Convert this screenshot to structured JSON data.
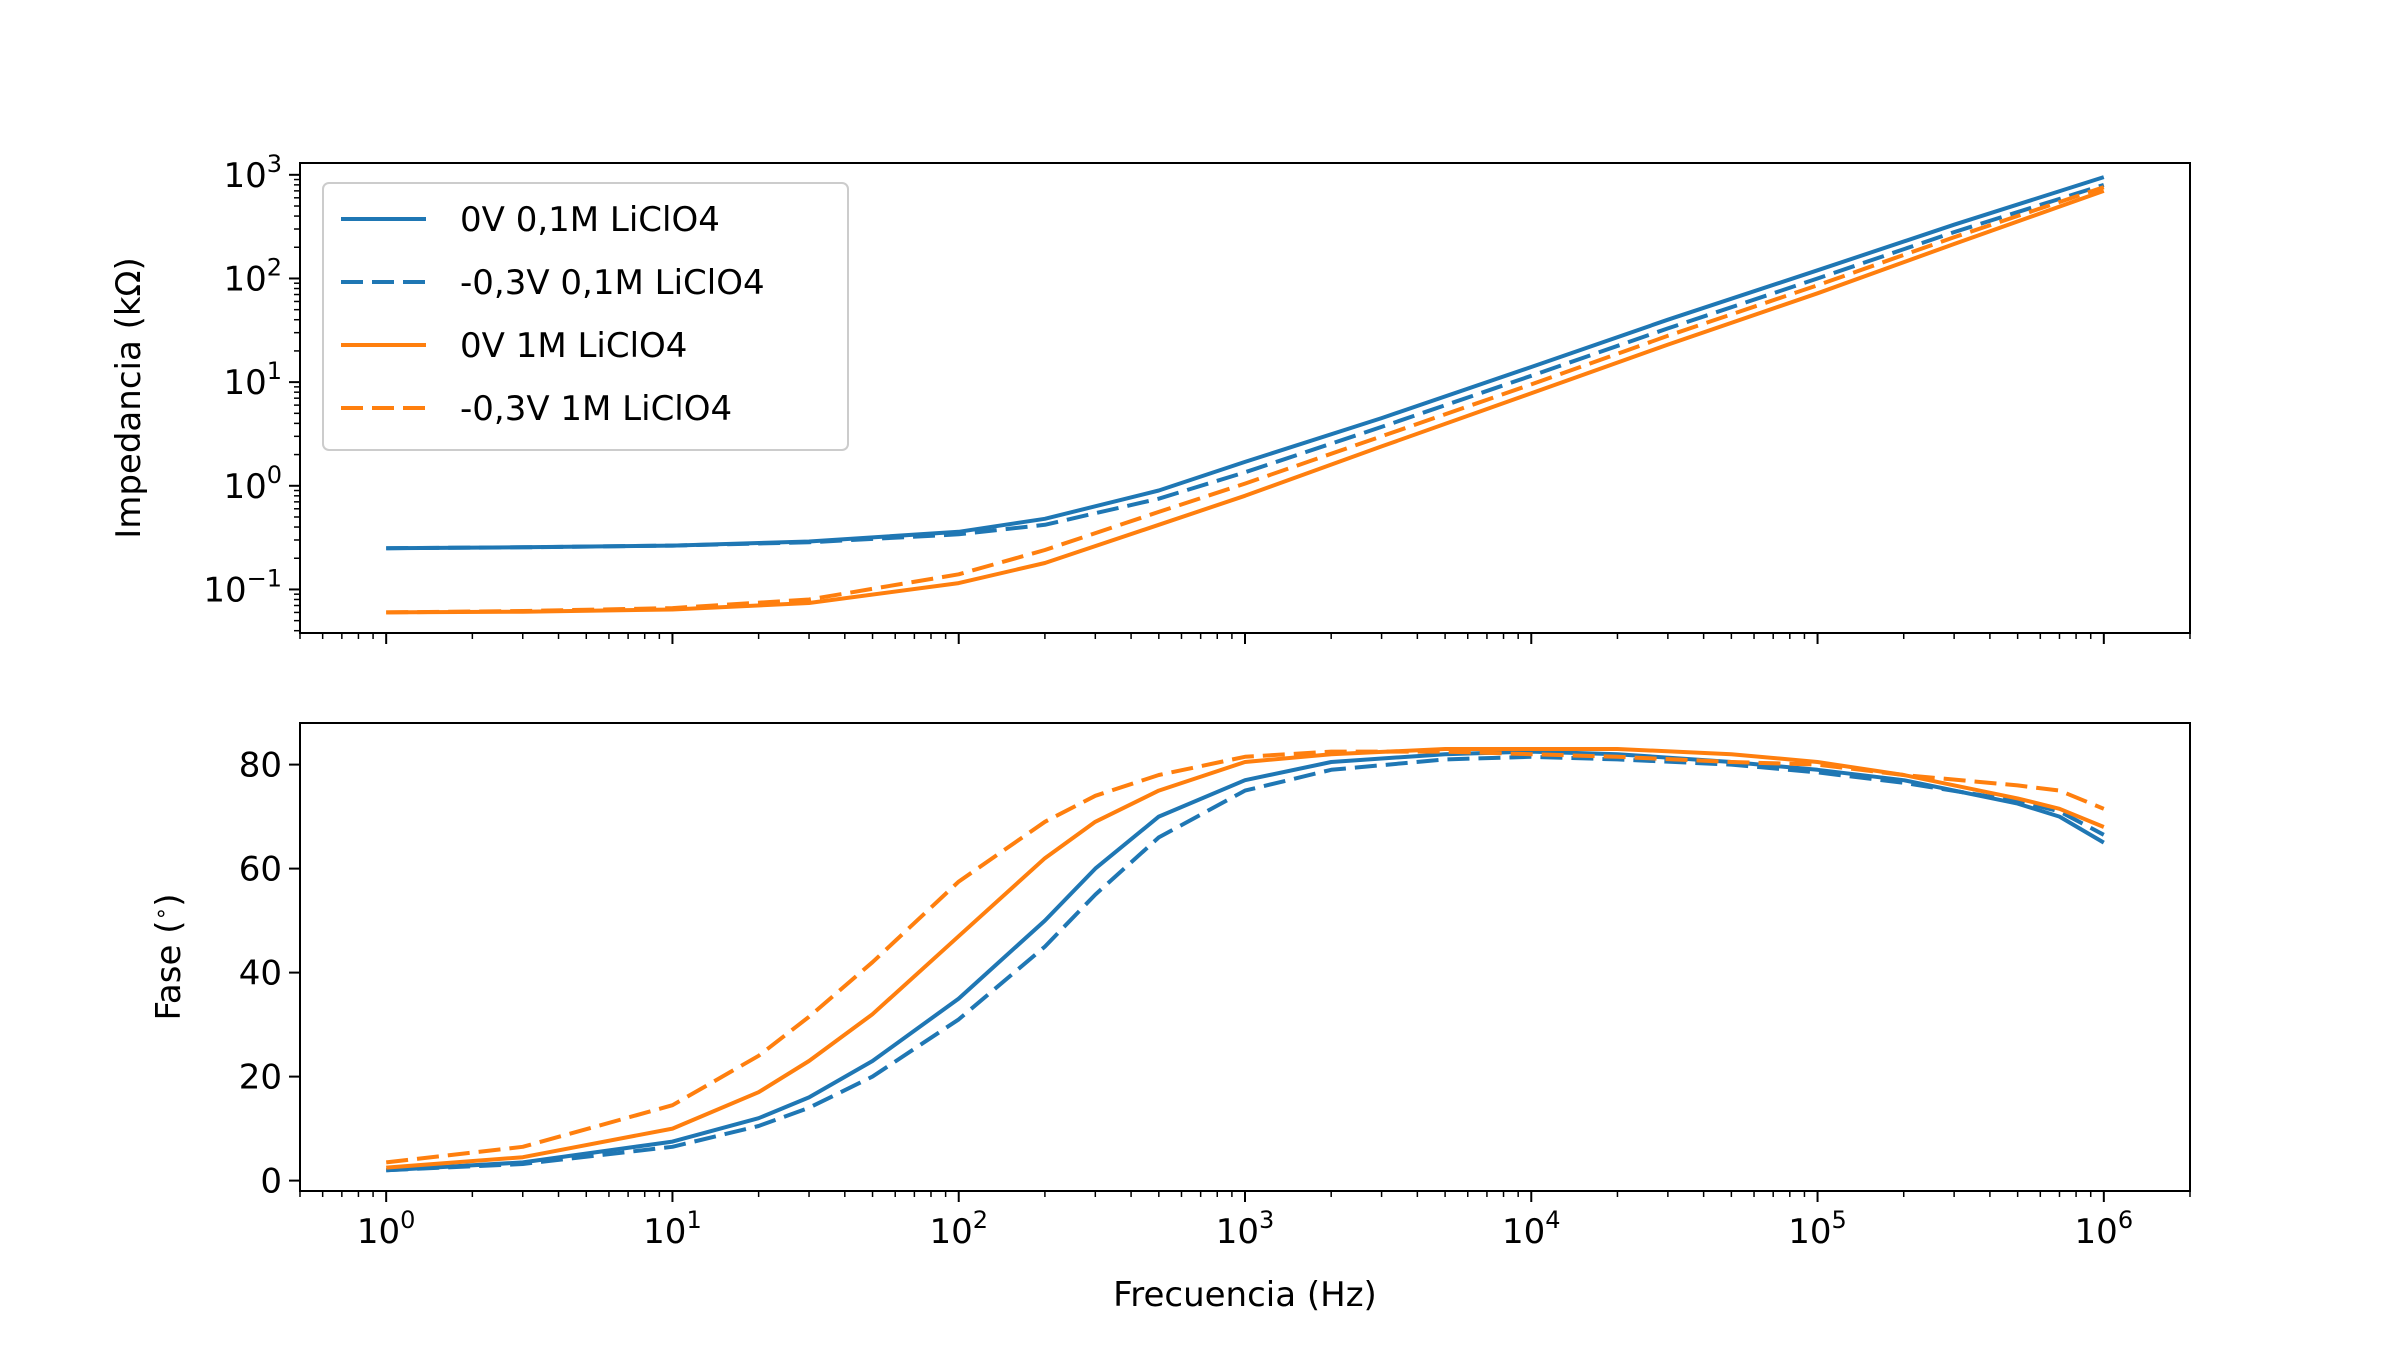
{
  "chart_data": [
    {
      "type": "line",
      "ylabel": "Impedancia (kΩ)",
      "yscale": "log",
      "xscale": "log",
      "xlim": [
        0.5,
        2000000
      ],
      "ylim": [
        0.038,
        1300
      ],
      "x_ticks": [
        "10^0",
        "10^1",
        "10^2",
        "10^3",
        "10^4",
        "10^5",
        "10^6"
      ],
      "y_ticks": [
        "10^-1",
        "10^0",
        "10^1",
        "10^2",
        "10^3"
      ],
      "show_x_tick_labels": false,
      "legend": {
        "placement": "upper left"
      },
      "x": [
        1,
        3,
        10,
        30,
        100,
        200,
        500,
        1000,
        3000,
        10000,
        30000,
        100000,
        300000,
        1000000
      ],
      "series": [
        {
          "name": "0V 0,1M LiClO4",
          "color": "#1f77b4",
          "dash": "solid",
          "values": [
            0.25,
            0.255,
            0.265,
            0.29,
            0.36,
            0.48,
            0.9,
            1.7,
            4.5,
            14,
            40,
            120,
            330,
            950
          ]
        },
        {
          "name": "-0,3V 0,1M LiClO4",
          "color": "#1f77b4",
          "dash": "dashed",
          "values": [
            0.25,
            0.255,
            0.265,
            0.285,
            0.34,
            0.42,
            0.75,
            1.35,
            3.7,
            11.5,
            33,
            100,
            280,
            800
          ]
        },
        {
          "name": "0V 1M LiClO4",
          "color": "#ff7f0e",
          "dash": "solid",
          "values": [
            0.06,
            0.061,
            0.064,
            0.074,
            0.115,
            0.18,
            0.42,
            0.8,
            2.4,
            7.8,
            23,
            72,
            215,
            700
          ]
        },
        {
          "name": "-0,3V 1M LiClO4",
          "color": "#ff7f0e",
          "dash": "dashed",
          "values": [
            0.06,
            0.062,
            0.066,
            0.08,
            0.14,
            0.24,
            0.56,
            1.05,
            3.0,
            9.5,
            28,
            86,
            250,
            760
          ]
        }
      ]
    },
    {
      "type": "line",
      "xlabel": "Frecuencia (Hz)",
      "ylabel": "Fase ($^\\circ$)",
      "ylabel_text": "Fase (",
      "ylabel_degree": "∘",
      "ylabel_close": ")",
      "xscale": "log",
      "xlim": [
        0.5,
        2000000
      ],
      "ylim": [
        -2,
        88
      ],
      "x_ticks": [
        "10^0",
        "10^1",
        "10^2",
        "10^3",
        "10^4",
        "10^5",
        "10^6"
      ],
      "y_ticks": [
        "0",
        "20",
        "40",
        "60",
        "80"
      ],
      "x": [
        1,
        3,
        10,
        20,
        30,
        50,
        100,
        200,
        300,
        500,
        1000,
        2000,
        5000,
        10000,
        20000,
        50000,
        100000,
        200000,
        500000,
        700000,
        1000000
      ],
      "series": [
        {
          "name": "0V 0,1M LiClO4",
          "color": "#1f77b4",
          "dash": "solid",
          "values": [
            2,
            3.5,
            7.5,
            12,
            16,
            23,
            35,
            50,
            60,
            70,
            77,
            80.5,
            82,
            82.5,
            82,
            80.5,
            79,
            77,
            72.5,
            70,
            65
          ]
        },
        {
          "name": "-0,3V 0,1M LiClO4",
          "color": "#1f77b4",
          "dash": "dashed",
          "values": [
            2,
            3.2,
            6.5,
            10.5,
            14,
            20,
            31,
            45,
            55,
            66,
            75,
            79,
            81,
            81.5,
            81,
            80,
            78.5,
            76.5,
            73,
            71,
            66.5
          ]
        },
        {
          "name": "0V 1M LiClO4",
          "color": "#ff7f0e",
          "dash": "solid",
          "values": [
            2.5,
            4.5,
            10,
            17,
            23,
            32,
            47,
            62,
            69,
            75,
            80.5,
            82,
            83,
            83,
            83,
            82,
            80.5,
            78,
            73.5,
            71.5,
            68
          ]
        },
        {
          "name": "-0,3V 1M LiClO4",
          "color": "#ff7f0e",
          "dash": "dashed",
          "values": [
            3.5,
            6.5,
            14.5,
            24,
            31.5,
            42,
            57.5,
            69,
            74,
            78,
            81.5,
            82.5,
            82.5,
            82,
            81.5,
            80.5,
            80,
            78,
            76,
            75,
            71.5
          ]
        }
      ]
    }
  ]
}
